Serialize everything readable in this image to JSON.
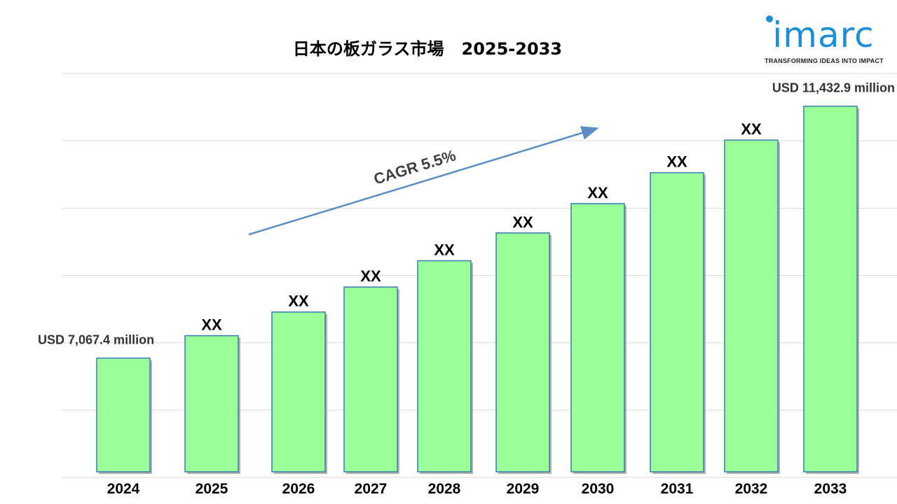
{
  "logo": {
    "wordmark": "imarc",
    "tagline": "TRANSFORMING IDEAS INTO IMPACT",
    "color": "#1d8fd9"
  },
  "chart_data": {
    "type": "bar",
    "title": "日本の板ガラス市場   2025-2033",
    "categories": [
      "2024",
      "2025",
      "2026",
      "2027",
      "2028",
      "2029",
      "2030",
      "2031",
      "2032",
      "2033"
    ],
    "series": [
      {
        "values": [
          7067.4,
          7456.1,
          7866.2,
          8298.8,
          8755.2,
          9236.8,
          9744.8,
          10280.7,
          10846.1,
          11432.9
        ]
      }
    ],
    "data_labels": [
      "USD 7,067.4 million",
      "XX",
      "XX",
      "XX",
      "XX",
      "XX",
      "XX",
      "XX",
      "XX",
      "USD 11,432.9 million"
    ],
    "ylim": [
      5000,
      12000
    ],
    "grid": true,
    "annotation": "CAGR 5.5%",
    "colors": {
      "bar_fill": "#99ff99",
      "bar_border": "#3a7ab8",
      "arrow": "#5b8ec3",
      "grid": "#d9d9d9"
    }
  }
}
